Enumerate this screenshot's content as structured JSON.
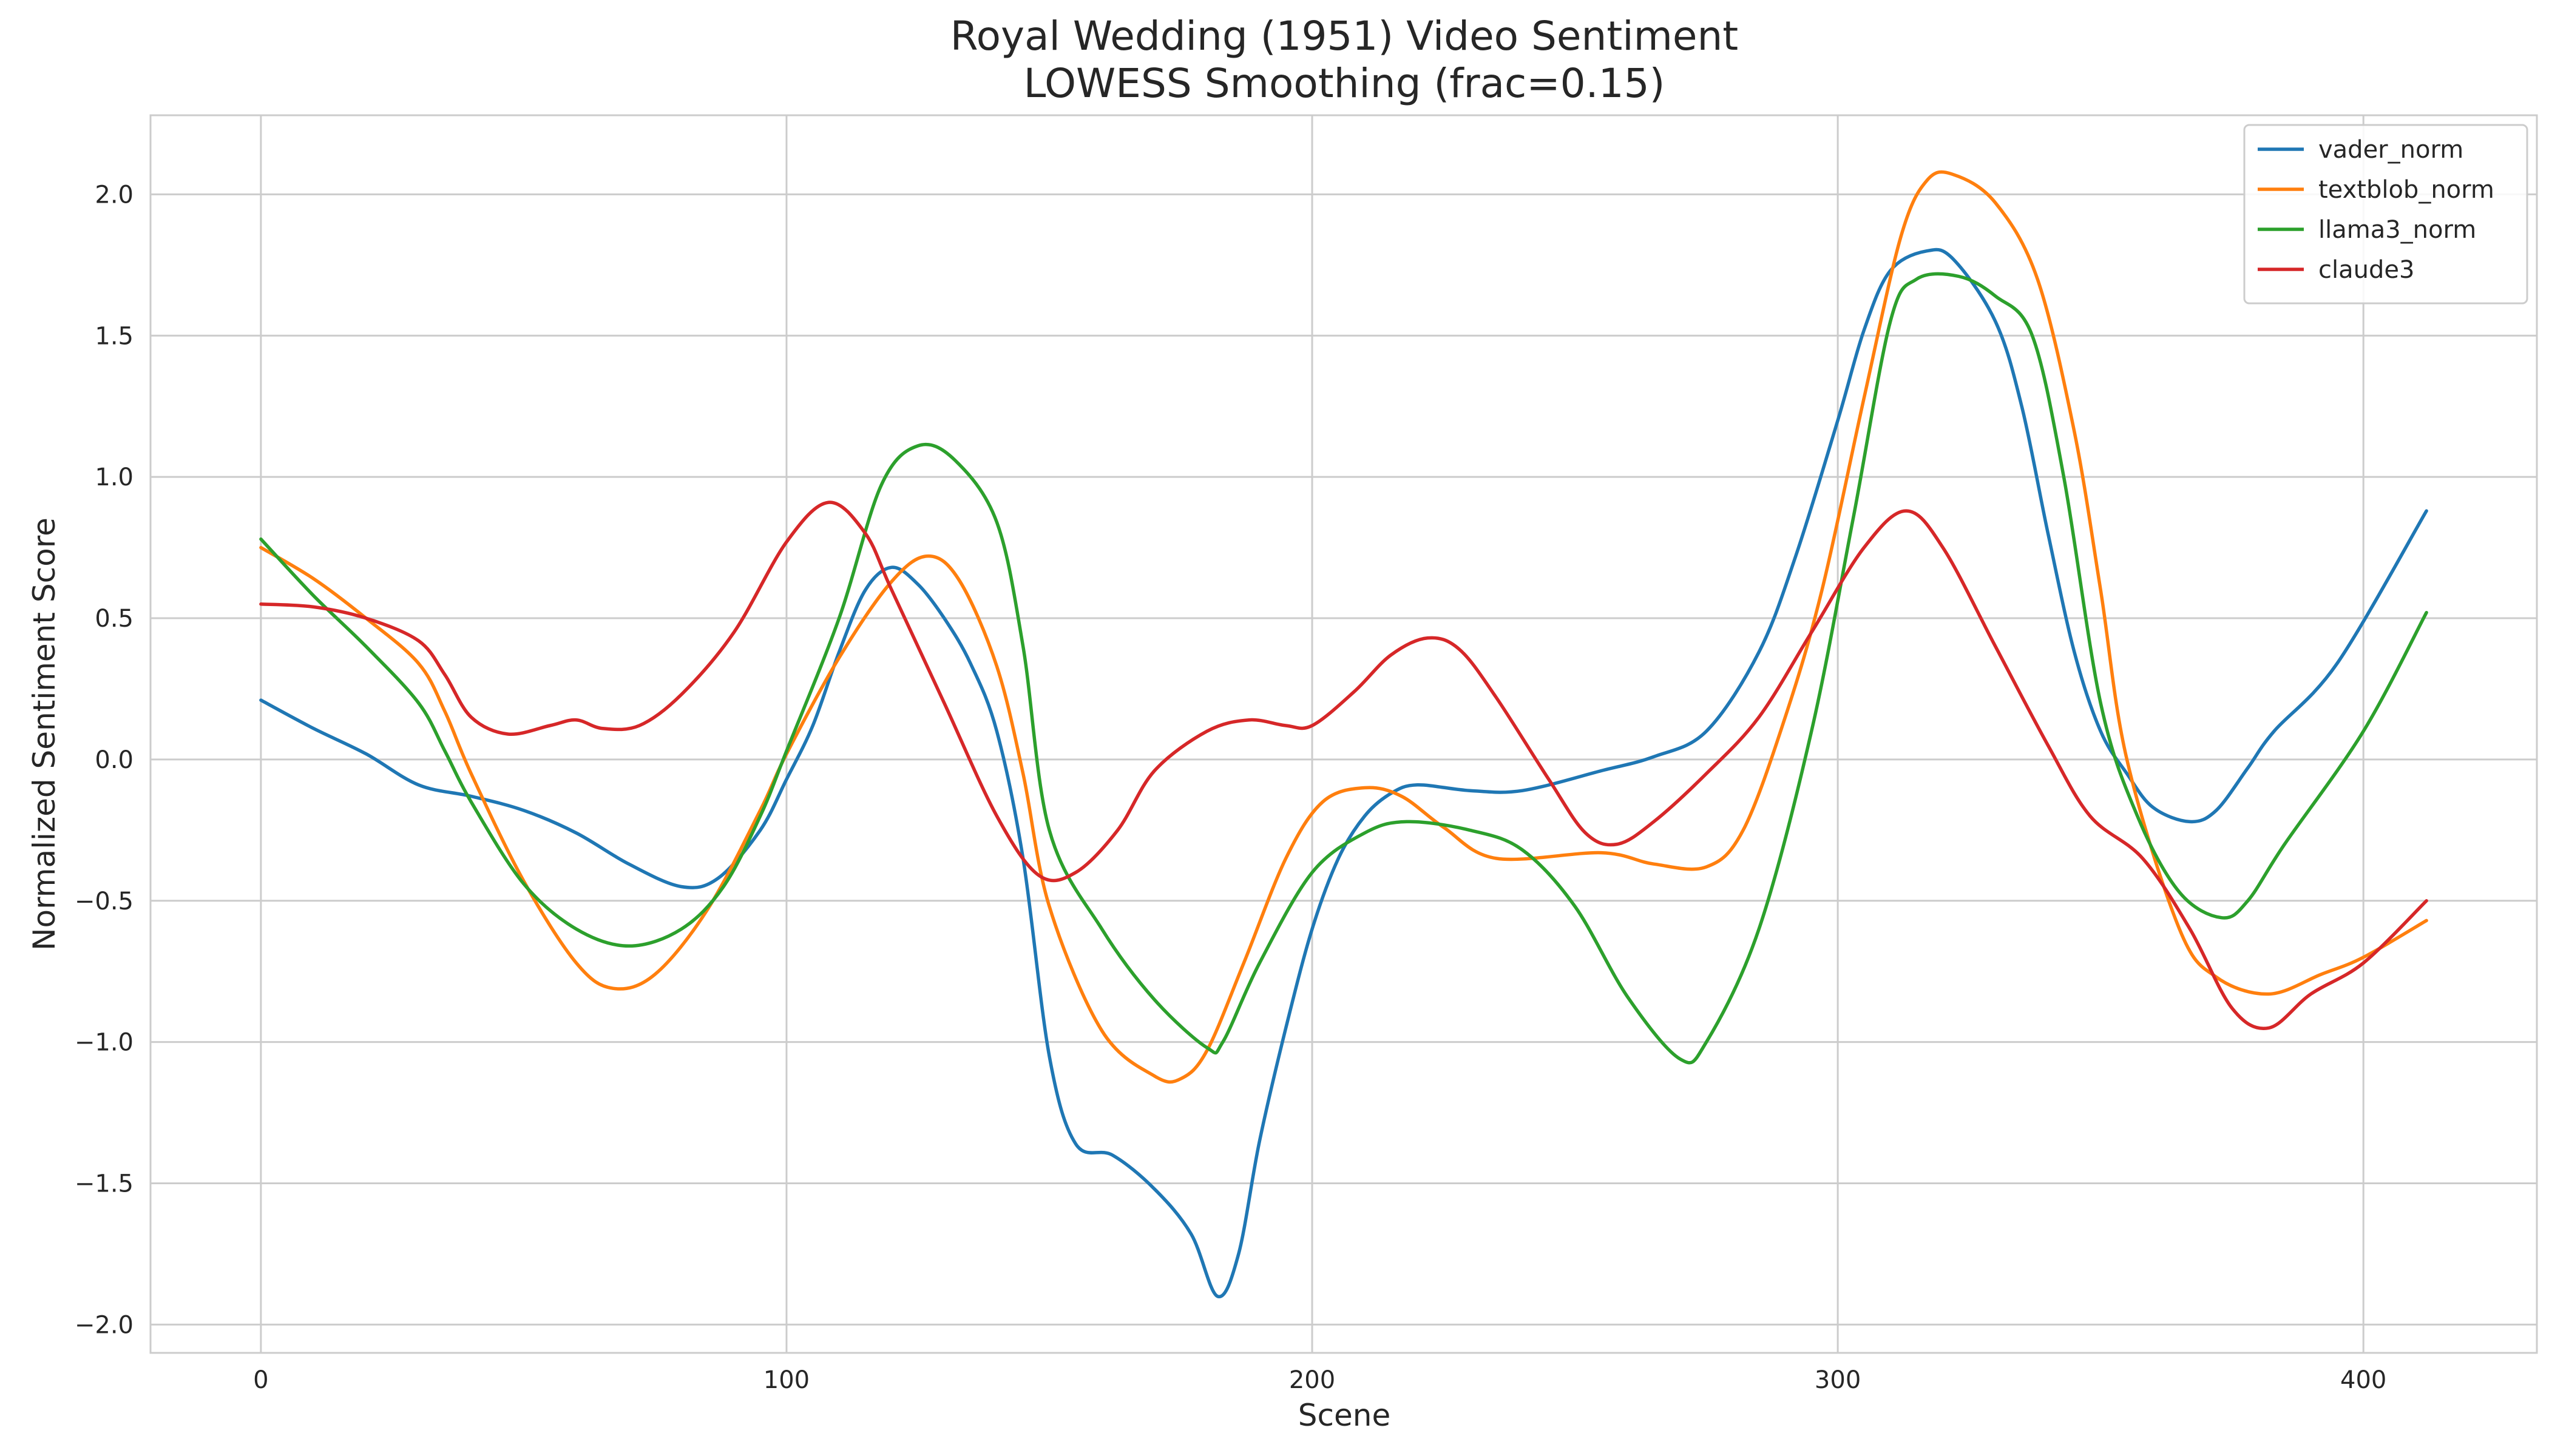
{
  "chart_data": {
    "type": "line",
    "title": "Royal Wedding (1951) Video Sentiment",
    "subtitle": "LOWESS Smoothing (frac=0.15)",
    "xlabel": "Scene",
    "ylabel": "Normalized Sentiment Score",
    "xlim": [
      -21,
      433
    ],
    "ylim": [
      -2.1,
      2.28
    ],
    "xticks": [
      0,
      100,
      200,
      300,
      400
    ],
    "yticks": [
      -2.0,
      -1.5,
      -1.0,
      -0.5,
      0.0,
      0.5,
      1.0,
      1.5,
      2.0
    ],
    "xtick_labels": [
      "0",
      "100",
      "200",
      "300",
      "400"
    ],
    "ytick_labels": [
      "−2.0",
      "−1.5",
      "−1.0",
      "−0.5",
      "0.0",
      "0.5",
      "1.0",
      "1.5",
      "2.0"
    ],
    "grid": true,
    "legend_position": "top-right",
    "series": [
      {
        "name": "vader_norm",
        "color": "#1f77b4",
        "points": [
          [
            0,
            0.21
          ],
          [
            10,
            0.11
          ],
          [
            20,
            0.02
          ],
          [
            30,
            -0.09
          ],
          [
            40,
            -0.13
          ],
          [
            50,
            -0.18
          ],
          [
            60,
            -0.26
          ],
          [
            70,
            -0.37
          ],
          [
            80,
            -0.45
          ],
          [
            87,
            -0.42
          ],
          [
            95,
            -0.25
          ],
          [
            100,
            -0.07
          ],
          [
            105,
            0.12
          ],
          [
            110,
            0.38
          ],
          [
            115,
            0.6
          ],
          [
            120,
            0.68
          ],
          [
            125,
            0.62
          ],
          [
            130,
            0.5
          ],
          [
            135,
            0.34
          ],
          [
            140,
            0.1
          ],
          [
            145,
            -0.35
          ],
          [
            150,
            -1.05
          ],
          [
            155,
            -1.36
          ],
          [
            162,
            -1.4
          ],
          [
            170,
            -1.52
          ],
          [
            177,
            -1.68
          ],
          [
            182,
            -1.9
          ],
          [
            186,
            -1.75
          ],
          [
            190,
            -1.35
          ],
          [
            195,
            -0.95
          ],
          [
            200,
            -0.6
          ],
          [
            205,
            -0.35
          ],
          [
            210,
            -0.2
          ],
          [
            215,
            -0.12
          ],
          [
            220,
            -0.09
          ],
          [
            230,
            -0.11
          ],
          [
            240,
            -0.11
          ],
          [
            255,
            -0.04
          ],
          [
            265,
            0.01
          ],
          [
            275,
            0.1
          ],
          [
            285,
            0.38
          ],
          [
            292,
            0.72
          ],
          [
            300,
            1.2
          ],
          [
            305,
            1.52
          ],
          [
            310,
            1.73
          ],
          [
            317,
            1.8
          ],
          [
            322,
            1.77
          ],
          [
            330,
            1.55
          ],
          [
            335,
            1.25
          ],
          [
            340,
            0.8
          ],
          [
            345,
            0.38
          ],
          [
            350,
            0.1
          ],
          [
            355,
            -0.05
          ],
          [
            360,
            -0.17
          ],
          [
            367,
            -0.22
          ],
          [
            372,
            -0.18
          ],
          [
            378,
            -0.03
          ],
          [
            383,
            0.1
          ],
          [
            395,
            0.34
          ],
          [
            412,
            0.88
          ]
        ]
      },
      {
        "name": "textblob_norm",
        "color": "#ff7f0e",
        "points": [
          [
            0,
            0.75
          ],
          [
            10,
            0.64
          ],
          [
            20,
            0.5
          ],
          [
            30,
            0.34
          ],
          [
            35,
            0.17
          ],
          [
            40,
            -0.05
          ],
          [
            50,
            -0.43
          ],
          [
            60,
            -0.72
          ],
          [
            67,
            -0.81
          ],
          [
            75,
            -0.76
          ],
          [
            85,
            -0.53
          ],
          [
            95,
            -0.18
          ],
          [
            100,
            0.02
          ],
          [
            110,
            0.36
          ],
          [
            120,
            0.63
          ],
          [
            127,
            0.72
          ],
          [
            133,
            0.63
          ],
          [
            140,
            0.33
          ],
          [
            145,
            -0.05
          ],
          [
            150,
            -0.52
          ],
          [
            160,
            -0.96
          ],
          [
            170,
            -1.12
          ],
          [
            175,
            -1.13
          ],
          [
            180,
            -1.03
          ],
          [
            187,
            -0.72
          ],
          [
            195,
            -0.35
          ],
          [
            202,
            -0.15
          ],
          [
            210,
            -0.1
          ],
          [
            217,
            -0.13
          ],
          [
            225,
            -0.24
          ],
          [
            235,
            -0.35
          ],
          [
            255,
            -0.33
          ],
          [
            265,
            -0.37
          ],
          [
            275,
            -0.38
          ],
          [
            282,
            -0.25
          ],
          [
            290,
            0.15
          ],
          [
            297,
            0.6
          ],
          [
            305,
            1.28
          ],
          [
            312,
            1.85
          ],
          [
            317,
            2.05
          ],
          [
            322,
            2.07
          ],
          [
            330,
            1.97
          ],
          [
            338,
            1.7
          ],
          [
            345,
            1.16
          ],
          [
            350,
            0.6
          ],
          [
            355,
            0.0
          ],
          [
            365,
            -0.6
          ],
          [
            372,
            -0.77
          ],
          [
            382,
            -0.83
          ],
          [
            392,
            -0.76
          ],
          [
            400,
            -0.7
          ],
          [
            412,
            -0.57
          ]
        ]
      },
      {
        "name": "llama3_norm",
        "color": "#2ca02c",
        "points": [
          [
            0,
            0.78
          ],
          [
            10,
            0.58
          ],
          [
            20,
            0.4
          ],
          [
            30,
            0.2
          ],
          [
            35,
            0.03
          ],
          [
            40,
            -0.15
          ],
          [
            50,
            -0.44
          ],
          [
            60,
            -0.6
          ],
          [
            70,
            -0.66
          ],
          [
            80,
            -0.6
          ],
          [
            88,
            -0.45
          ],
          [
            95,
            -0.2
          ],
          [
            100,
            0.03
          ],
          [
            110,
            0.5
          ],
          [
            118,
            0.97
          ],
          [
            125,
            1.11
          ],
          [
            132,
            1.06
          ],
          [
            140,
            0.84
          ],
          [
            145,
            0.4
          ],
          [
            150,
            -0.25
          ],
          [
            160,
            -0.6
          ],
          [
            170,
            -0.85
          ],
          [
            180,
            -1.02
          ],
          [
            183,
            -1.0
          ],
          [
            190,
            -0.72
          ],
          [
            200,
            -0.4
          ],
          [
            210,
            -0.26
          ],
          [
            218,
            -0.22
          ],
          [
            230,
            -0.25
          ],
          [
            240,
            -0.32
          ],
          [
            250,
            -0.52
          ],
          [
            260,
            -0.84
          ],
          [
            270,
            -1.06
          ],
          [
            275,
            -1.0
          ],
          [
            285,
            -0.6
          ],
          [
            295,
            0.1
          ],
          [
            303,
            0.86
          ],
          [
            310,
            1.55
          ],
          [
            315,
            1.7
          ],
          [
            323,
            1.71
          ],
          [
            330,
            1.64
          ],
          [
            337,
            1.5
          ],
          [
            343,
            1.0
          ],
          [
            350,
            0.2
          ],
          [
            357,
            -0.2
          ],
          [
            365,
            -0.47
          ],
          [
            373,
            -0.56
          ],
          [
            378,
            -0.5
          ],
          [
            385,
            -0.3
          ],
          [
            400,
            0.1
          ],
          [
            412,
            0.52
          ]
        ]
      },
      {
        "name": "claude3",
        "color": "#d62728",
        "points": [
          [
            0,
            0.55
          ],
          [
            10,
            0.54
          ],
          [
            20,
            0.5
          ],
          [
            30,
            0.42
          ],
          [
            35,
            0.3
          ],
          [
            40,
            0.15
          ],
          [
            47,
            0.09
          ],
          [
            55,
            0.12
          ],
          [
            60,
            0.14
          ],
          [
            65,
            0.11
          ],
          [
            72,
            0.12
          ],
          [
            80,
            0.23
          ],
          [
            90,
            0.45
          ],
          [
            100,
            0.77
          ],
          [
            108,
            0.91
          ],
          [
            115,
            0.8
          ],
          [
            120,
            0.6
          ],
          [
            130,
            0.2
          ],
          [
            140,
            -0.2
          ],
          [
            148,
            -0.41
          ],
          [
            155,
            -0.4
          ],
          [
            163,
            -0.25
          ],
          [
            170,
            -0.04
          ],
          [
            180,
            0.1
          ],
          [
            188,
            0.14
          ],
          [
            195,
            0.12
          ],
          [
            200,
            0.12
          ],
          [
            208,
            0.24
          ],
          [
            215,
            0.37
          ],
          [
            222,
            0.43
          ],
          [
            228,
            0.39
          ],
          [
            235,
            0.22
          ],
          [
            245,
            -0.07
          ],
          [
            252,
            -0.26
          ],
          [
            258,
            -0.3
          ],
          [
            265,
            -0.22
          ],
          [
            275,
            -0.05
          ],
          [
            285,
            0.15
          ],
          [
            295,
            0.45
          ],
          [
            305,
            0.75
          ],
          [
            313,
            0.88
          ],
          [
            320,
            0.75
          ],
          [
            330,
            0.4
          ],
          [
            340,
            0.05
          ],
          [
            348,
            -0.2
          ],
          [
            358,
            -0.35
          ],
          [
            367,
            -0.6
          ],
          [
            375,
            -0.88
          ],
          [
            382,
            -0.95
          ],
          [
            390,
            -0.83
          ],
          [
            400,
            -0.72
          ],
          [
            412,
            -0.5
          ]
        ]
      }
    ]
  }
}
